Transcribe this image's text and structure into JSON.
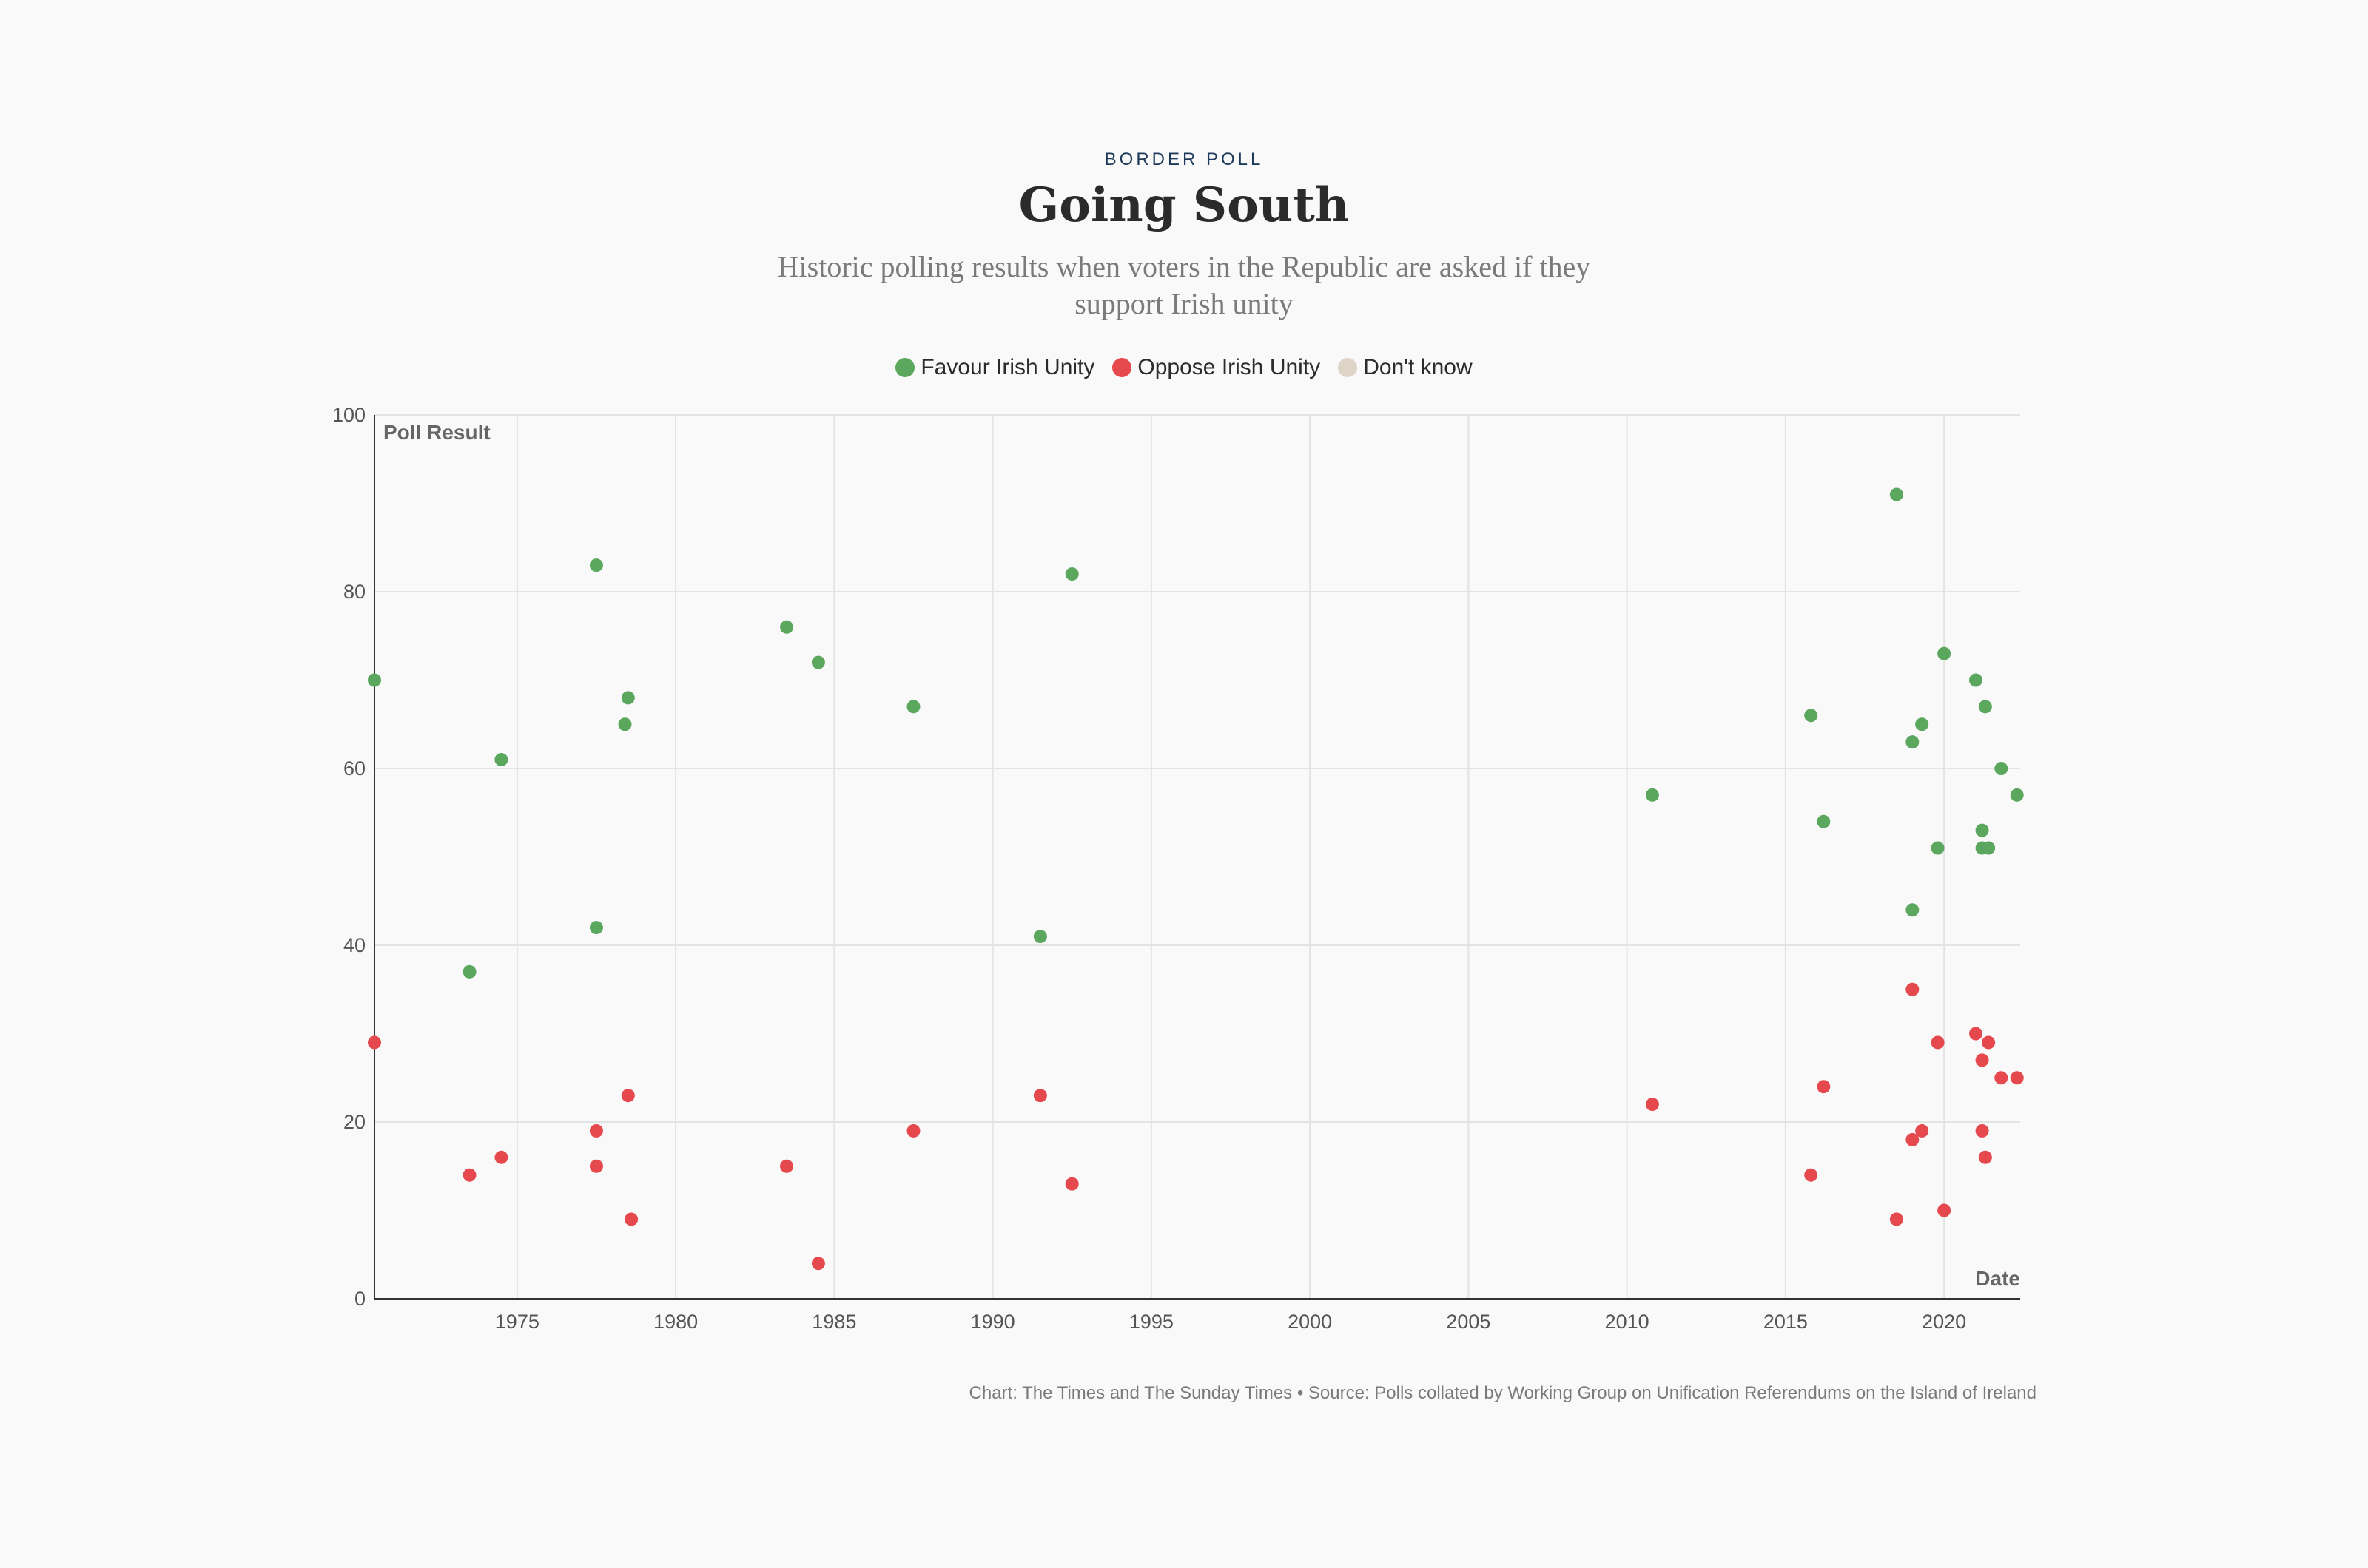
{
  "header": {
    "kicker": "BORDER POLL",
    "title": "Going South",
    "subtitle": "Historic polling results when voters in the Republic are asked if they support Irish unity"
  },
  "legend": [
    {
      "label": "Favour Irish Unity",
      "color": "#5ba75e"
    },
    {
      "label": "Oppose Irish Unity",
      "color": "#e5484d"
    },
    {
      "label": "Don't know",
      "color": "#ddd3c6"
    }
  ],
  "footer": "Chart: The Times and The Sunday Times • Source: Polls collated by Working Group on Unification Referendums on the Island of Ireland",
  "chart_data": {
    "type": "scatter",
    "ylabel": "Poll Result",
    "xlabel": "Date",
    "xlim": [
      1970.5,
      2022.4
    ],
    "ylim": [
      0,
      100
    ],
    "x_ticks": [
      1975,
      1980,
      1985,
      1990,
      1995,
      2000,
      2005,
      2010,
      2015,
      2020
    ],
    "y_ticks": [
      0,
      20,
      40,
      60,
      80,
      100
    ],
    "grid": true,
    "legend_position": "top-center",
    "series": [
      {
        "name": "Favour Irish Unity",
        "color": "#5ba75e",
        "points": [
          [
            1970.5,
            70
          ],
          [
            1973.5,
            37
          ],
          [
            1974.5,
            61
          ],
          [
            1977.5,
            83
          ],
          [
            1977.5,
            42
          ],
          [
            1978.5,
            68
          ],
          [
            1978.4,
            65
          ],
          [
            1983.5,
            76
          ],
          [
            1984.5,
            72
          ],
          [
            1987.5,
            67
          ],
          [
            1991.5,
            41
          ],
          [
            1992.5,
            82
          ],
          [
            2010.8,
            57
          ],
          [
            2015.8,
            66
          ],
          [
            2016.2,
            54
          ],
          [
            2018.5,
            91
          ],
          [
            2019.0,
            63
          ],
          [
            2019.0,
            44
          ],
          [
            2019.3,
            65
          ],
          [
            2019.8,
            51
          ],
          [
            2020.0,
            73
          ],
          [
            2021.0,
            70
          ],
          [
            2021.2,
            53
          ],
          [
            2021.2,
            51
          ],
          [
            2021.4,
            51
          ],
          [
            2021.3,
            67
          ],
          [
            2021.8,
            60
          ],
          [
            2022.3,
            57
          ]
        ]
      },
      {
        "name": "Oppose Irish Unity",
        "color": "#e5484d",
        "points": [
          [
            1970.5,
            29
          ],
          [
            1973.5,
            14
          ],
          [
            1974.5,
            16
          ],
          [
            1977.5,
            19
          ],
          [
            1977.5,
            15
          ],
          [
            1978.5,
            23
          ],
          [
            1978.6,
            9
          ],
          [
            1983.5,
            15
          ],
          [
            1984.5,
            4
          ],
          [
            1987.5,
            19
          ],
          [
            1991.5,
            23
          ],
          [
            1992.5,
            13
          ],
          [
            2010.8,
            22
          ],
          [
            2015.8,
            14
          ],
          [
            2016.2,
            24
          ],
          [
            2018.5,
            9
          ],
          [
            2019.0,
            35
          ],
          [
            2019.0,
            18
          ],
          [
            2019.3,
            19
          ],
          [
            2019.8,
            29
          ],
          [
            2020.0,
            10
          ],
          [
            2021.0,
            30
          ],
          [
            2021.2,
            27
          ],
          [
            2021.2,
            19
          ],
          [
            2021.3,
            16
          ],
          [
            2021.4,
            29
          ],
          [
            2021.8,
            25
          ],
          [
            2022.3,
            25
          ]
        ]
      },
      {
        "name": "Don't know",
        "color": "#ddd3c6",
        "points": []
      }
    ]
  }
}
